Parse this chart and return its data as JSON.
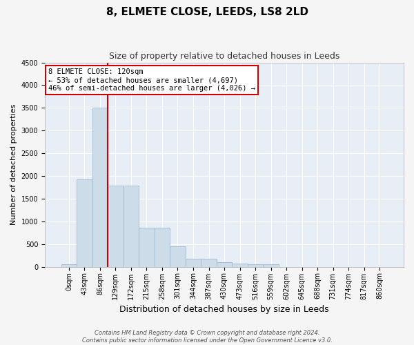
{
  "title": "8, ELMETE CLOSE, LEEDS, LS8 2LD",
  "subtitle": "Size of property relative to detached houses in Leeds",
  "xlabel": "Distribution of detached houses by size in Leeds",
  "ylabel": "Number of detached properties",
  "bar_color": "#ccdce8",
  "bar_edge_color": "#a0b8cc",
  "background_color": "#e8eef6",
  "grid_color": "#ffffff",
  "annotation_line1": "8 ELMETE CLOSE: 120sqm",
  "annotation_line2": "← 53% of detached houses are smaller (4,697)",
  "annotation_line3": "46% of semi-detached houses are larger (4,026) →",
  "vline_color": "#cc0000",
  "vline_pos": 2.5,
  "ylim": [
    0,
    4500
  ],
  "yticks": [
    0,
    500,
    1000,
    1500,
    2000,
    2500,
    3000,
    3500,
    4000,
    4500
  ],
  "categories": [
    "0sqm",
    "43sqm",
    "86sqm",
    "129sqm",
    "172sqm",
    "215sqm",
    "258sqm",
    "301sqm",
    "344sqm",
    "387sqm",
    "430sqm",
    "473sqm",
    "516sqm",
    "559sqm",
    "602sqm",
    "645sqm",
    "688sqm",
    "731sqm",
    "774sqm",
    "817sqm",
    "860sqm"
  ],
  "values": [
    50,
    1920,
    3500,
    1790,
    1790,
    855,
    855,
    450,
    175,
    175,
    95,
    65,
    50,
    50,
    0,
    0,
    0,
    0,
    0,
    0,
    0
  ],
  "footer_line1": "Contains HM Land Registry data © Crown copyright and database right 2024.",
  "footer_line2": "Contains public sector information licensed under the Open Government Licence v3.0.",
  "annotation_box_facecolor": "#ffffff",
  "annotation_box_edgecolor": "#cc0000",
  "fig_facecolor": "#f5f5f5",
  "title_fontsize": 11,
  "subtitle_fontsize": 9,
  "ylabel_fontsize": 8,
  "xlabel_fontsize": 9,
  "tick_fontsize": 7,
  "footer_fontsize": 6
}
